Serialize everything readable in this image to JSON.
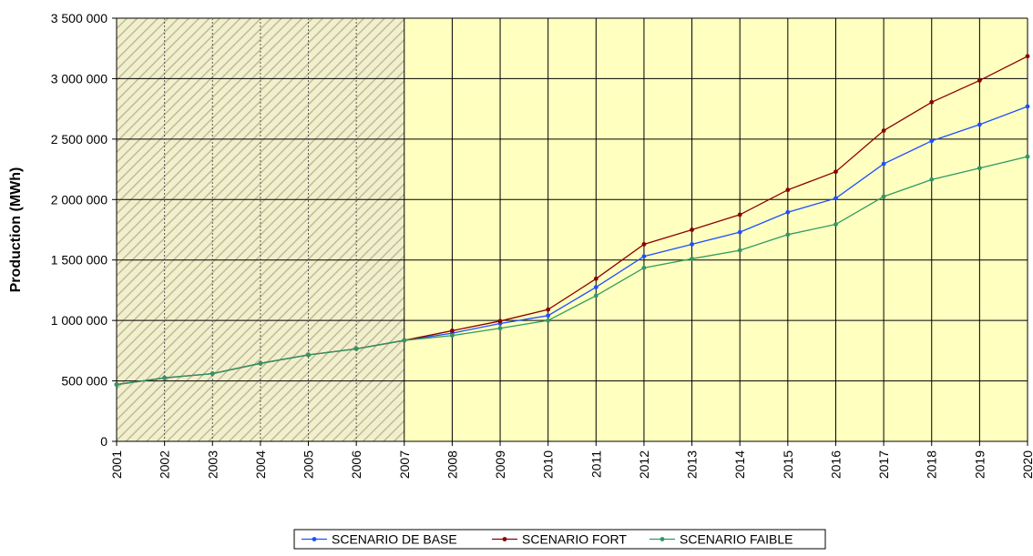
{
  "chart_data": {
    "type": "line",
    "title": "",
    "xlabel": "",
    "ylabel": "Production (MWh)",
    "categories": [
      "2001",
      "2002",
      "2003",
      "2004",
      "2005",
      "2006",
      "2007",
      "2008",
      "2009",
      "2010",
      "2011",
      "2012",
      "2013",
      "2014",
      "2015",
      "2016",
      "2017",
      "2018",
      "2019",
      "2020"
    ],
    "ylim": [
      0,
      3500000
    ],
    "y_ticks": [
      0,
      500000,
      1000000,
      1500000,
      2000000,
      2500000,
      3000000,
      3500000
    ],
    "y_tick_labels": [
      "0",
      "500 000",
      "1 000 000",
      "1 500 000",
      "2 000 000",
      "2 500 000",
      "3 000 000",
      "3 500 000"
    ],
    "grid": true,
    "historical_period": [
      "2001",
      "2007"
    ],
    "legend_position": "bottom",
    "series": [
      {
        "name": "SCENARIO DE BASE",
        "color": "#1f4fff",
        "values": [
          470000,
          525000,
          560000,
          645000,
          715000,
          765000,
          835000,
          895000,
          975000,
          1040000,
          1275000,
          1530000,
          1630000,
          1730000,
          1895000,
          2010000,
          2295000,
          2485000,
          2620000,
          2770000
        ]
      },
      {
        "name": "SCENARIO FORT",
        "color": "#8b0000",
        "values": [
          470000,
          525000,
          560000,
          645000,
          715000,
          765000,
          835000,
          915000,
          995000,
          1090000,
          1345000,
          1630000,
          1750000,
          1875000,
          2080000,
          2230000,
          2570000,
          2805000,
          2985000,
          3185000
        ]
      },
      {
        "name": "SCENARIO FAIBLE",
        "color": "#2e9a62",
        "values": [
          470000,
          525000,
          560000,
          645000,
          715000,
          765000,
          835000,
          875000,
          935000,
          1000000,
          1205000,
          1435000,
          1510000,
          1580000,
          1710000,
          1795000,
          2025000,
          2165000,
          2260000,
          2355000
        ]
      }
    ]
  }
}
